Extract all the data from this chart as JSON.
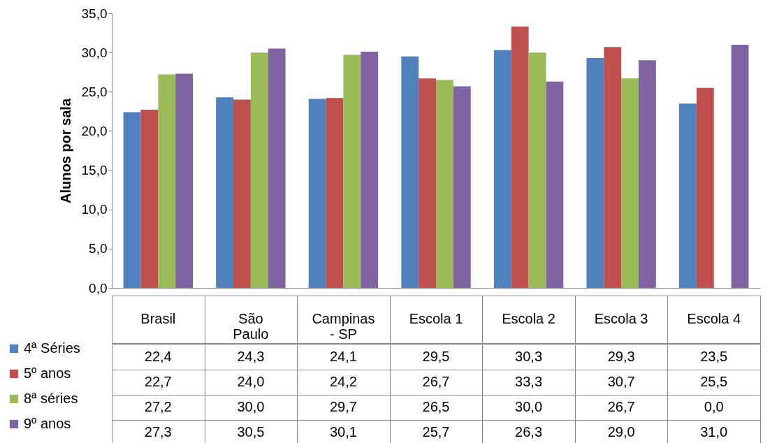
{
  "chart_data": {
    "type": "bar",
    "ylabel": "Alunos por sala",
    "categories": [
      "Brasil",
      "São Paulo",
      "Campinas - SP",
      "Escola 1",
      "Escola 2",
      "Escola 3",
      "Escola 4"
    ],
    "series": [
      {
        "name": "4ª Séries",
        "color": "#4f81bd",
        "values": [
          22.4,
          24.3,
          24.1,
          29.5,
          30.3,
          29.3,
          23.5
        ],
        "value_labels": [
          "22,4",
          "24,3",
          "24,1",
          "29,5",
          "30,3",
          "29,3",
          "23,5"
        ]
      },
      {
        "name": "5º anos",
        "color": "#c0504d",
        "values": [
          22.7,
          24.0,
          24.2,
          26.7,
          33.3,
          30.7,
          25.5
        ],
        "value_labels": [
          "22,7",
          "24,0",
          "24,2",
          "26,7",
          "33,3",
          "30,7",
          "25,5"
        ]
      },
      {
        "name": "8ª séries",
        "color": "#9bbb59",
        "values": [
          27.2,
          30.0,
          29.7,
          26.5,
          30.0,
          26.7,
          0.0
        ],
        "value_labels": [
          "27,2",
          "30,0",
          "29,7",
          "26,5",
          "30,0",
          "26,7",
          "0,0"
        ]
      },
      {
        "name": "9º anos",
        "color": "#8064a2",
        "values": [
          27.3,
          30.5,
          30.1,
          25.7,
          26.3,
          29.0,
          31.0
        ],
        "value_labels": [
          "27,3",
          "30,5",
          "30,1",
          "25,7",
          "26,3",
          "29,0",
          "31,0"
        ]
      }
    ],
    "ylim": [
      0,
      35
    ],
    "yticks": [
      {
        "value": 0,
        "label": "0,0"
      },
      {
        "value": 5,
        "label": "5,0"
      },
      {
        "value": 10,
        "label": "10,0"
      },
      {
        "value": 15,
        "label": "15,0"
      },
      {
        "value": 20,
        "label": "20,0"
      },
      {
        "value": 25,
        "label": "25,0"
      },
      {
        "value": 30,
        "label": "30,0"
      },
      {
        "value": 35,
        "label": "35,0"
      }
    ],
    "grid": false,
    "legend": "bottom"
  }
}
